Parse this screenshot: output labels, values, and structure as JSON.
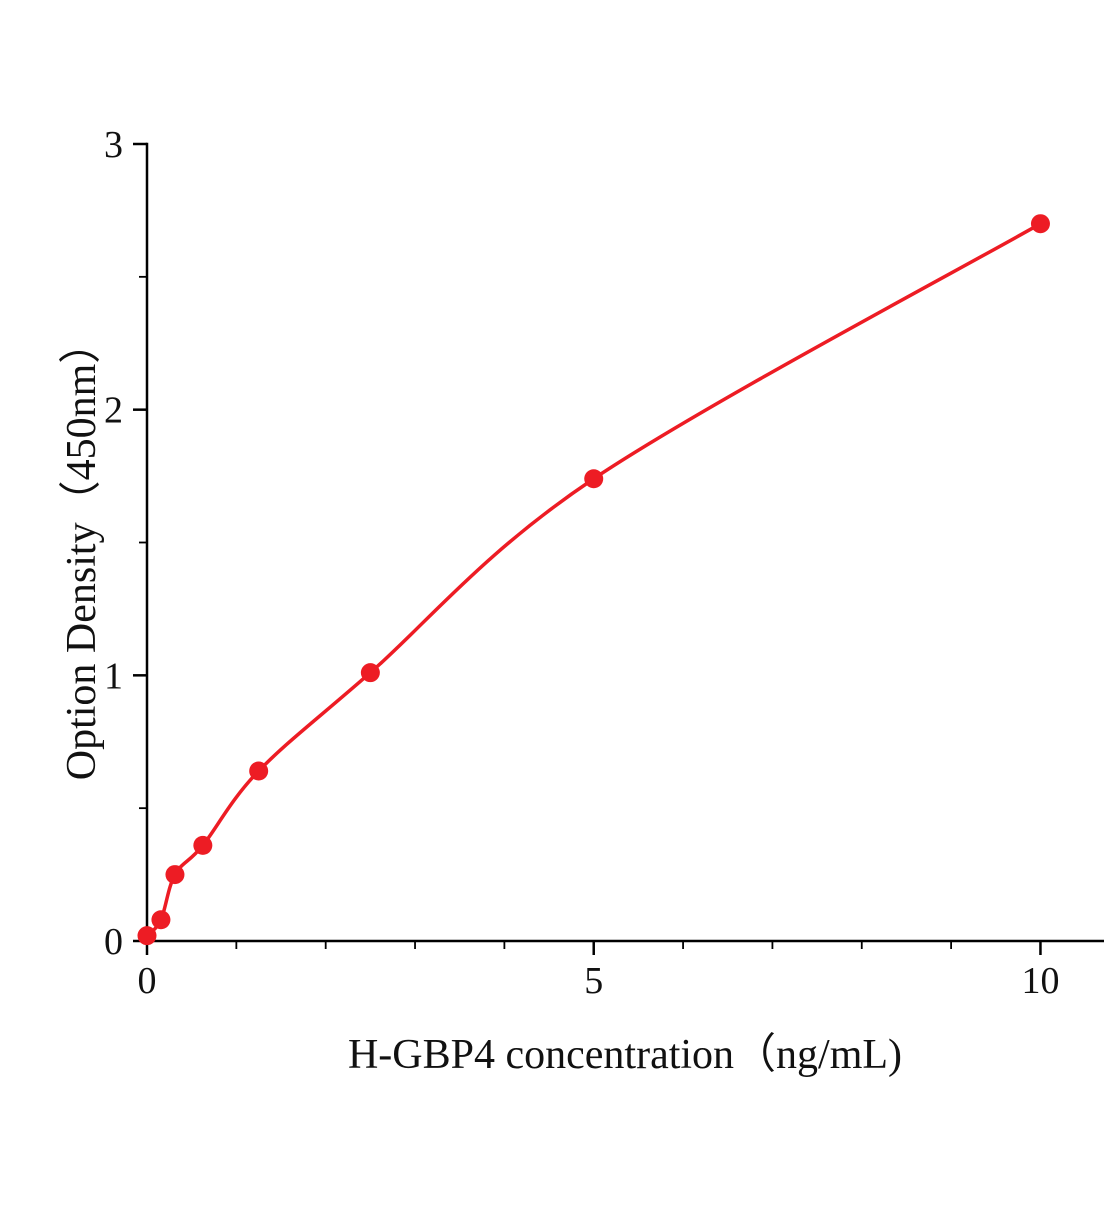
{
  "chart_data": {
    "type": "line",
    "title": "",
    "xlabel": "H-GBP4 concentration（ng/mL)",
    "ylabel": "Option Density（450nm）",
    "x": [
      0,
      0.156,
      0.313,
      0.625,
      1.25,
      2.5,
      5,
      10
    ],
    "y": [
      0.02,
      0.08,
      0.25,
      0.36,
      0.64,
      1.01,
      1.74,
      2.7
    ],
    "xlim": [
      0,
      10.7
    ],
    "ylim": [
      0,
      3
    ],
    "x_major_ticks": [
      0,
      5,
      10
    ],
    "x_minor_ticks": [
      1,
      2,
      3,
      4,
      6,
      7,
      8,
      9
    ],
    "y_major_ticks": [
      0,
      1,
      2,
      3
    ],
    "y_minor_ticks": [
      0.5,
      1.5,
      2.5
    ],
    "grid": false,
    "legend": false,
    "line_color": "#ed1c24",
    "marker_color": "#ed1c24",
    "axis_color": "#000000",
    "tick_label_color": "#111111"
  }
}
